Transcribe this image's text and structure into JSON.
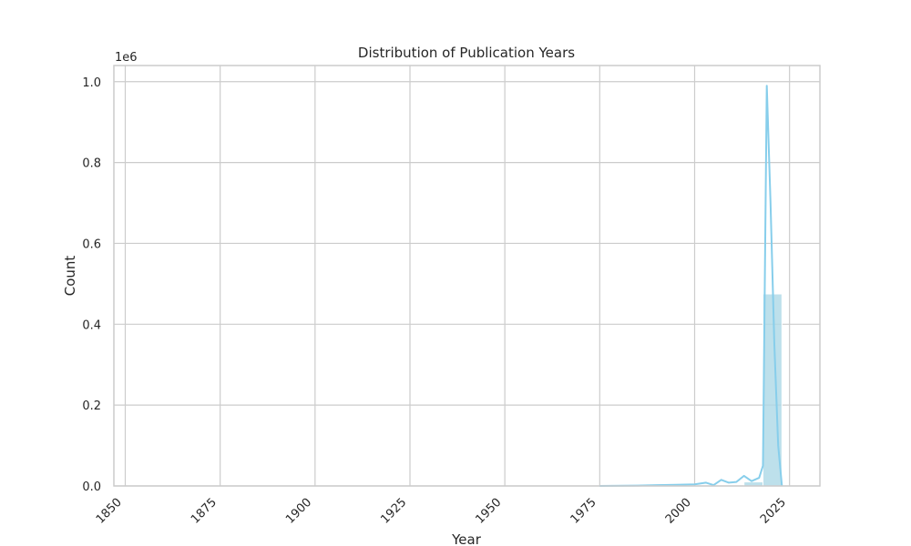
{
  "chart_data": {
    "type": "bar",
    "title": "Distribution of Publication Years",
    "xlabel": "Year",
    "ylabel": "Count",
    "y_multiplier_label": "1e6",
    "xlim": [
      1847,
      2033
    ],
    "ylim": [
      0,
      1.04
    ],
    "x_ticks": [
      1850,
      1875,
      1900,
      1925,
      1950,
      1975,
      2000,
      2025
    ],
    "x_tick_labels": [
      "1850",
      "1875",
      "1900",
      "1925",
      "1950",
      "1975",
      "2000",
      "2025"
    ],
    "y_ticks": [
      0.0,
      0.2,
      0.4,
      0.6,
      0.8,
      1.0
    ],
    "y_tick_labels": [
      "0.0",
      "0.2",
      "0.4",
      "0.6",
      "0.8",
      "1.0"
    ],
    "grid": true,
    "colors": {
      "bar_fill": "#add8e6",
      "kde_line": "#87ceeb",
      "grid": "#cccccc"
    },
    "bars": [
      {
        "x_start": 2013,
        "x_end": 2018,
        "value": 0.01
      },
      {
        "x_start": 2018,
        "x_end": 2023,
        "value": 0.475
      }
    ],
    "kde_curve": {
      "x": [
        1975,
        1985,
        1990,
        1995,
        2000,
        2003,
        2005,
        2007,
        2009,
        2011,
        2013,
        2015,
        2017,
        2018,
        2019,
        2020,
        2021,
        2022,
        2023
      ],
      "y": [
        0.0,
        0.001,
        0.002,
        0.003,
        0.004,
        0.008,
        0.002,
        0.015,
        0.008,
        0.01,
        0.025,
        0.012,
        0.02,
        0.05,
        0.99,
        0.7,
        0.35,
        0.1,
        0.0
      ]
    }
  }
}
